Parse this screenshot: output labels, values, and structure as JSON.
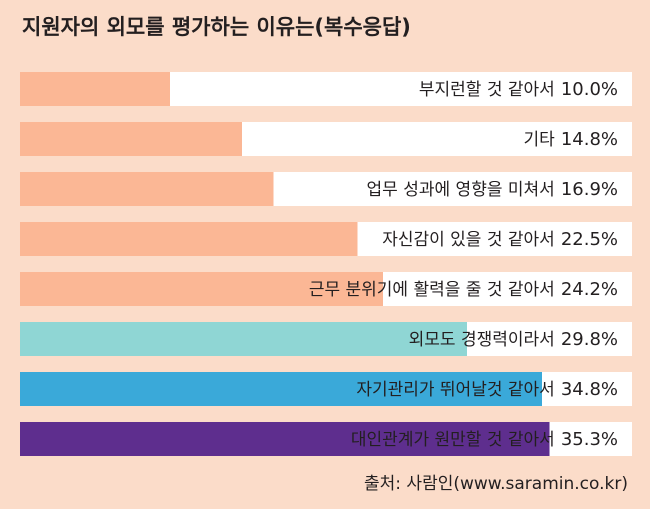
{
  "chart_data": {
    "type": "bar",
    "orientation": "horizontal",
    "title": "지원자의 외모를 평가하는 이유는(복수응답)",
    "categories": [
      "부지런할 것 같아서",
      "기타",
      "업무 성과에 영향을 미쳐서",
      "자신감이 있을 것 같아서",
      "근무 분위기에 활력을 줄 것 같아서",
      "외모도 경쟁력이라서",
      "자기관리가 뛰어날것 같아서",
      "대인관계가 원만할 것 같아서"
    ],
    "values": [
      10.0,
      14.8,
      16.9,
      22.5,
      24.2,
      29.8,
      34.8,
      35.3
    ],
    "value_labels": [
      "10.0%",
      "14.8%",
      "16.9%",
      "22.5%",
      "24.2%",
      "29.8%",
      "34.8%",
      "35.3%"
    ],
    "colors": [
      "#fbb795",
      "#fbb795",
      "#fbb795",
      "#fbb795",
      "#fbb795",
      "#8fd6d4",
      "#3aa9d9",
      "#5e2e8e"
    ],
    "source": "출처: 사람인(www.saramin.co.kr)"
  }
}
